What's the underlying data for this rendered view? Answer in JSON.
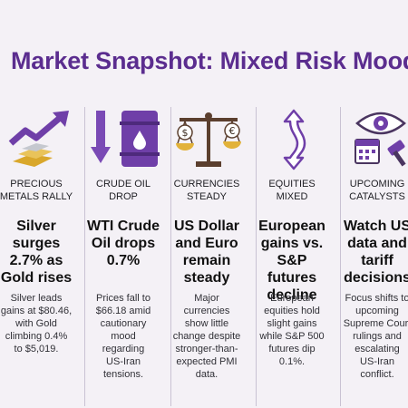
{
  "title": "Market Snapshot: Mixed Risk Mood",
  "columns": [
    {
      "icon": "rising-arrow-gold-bars-icon",
      "caption": "PRECIOUS\nMETALS RALLY",
      "headline": "Silver\nsurges\n2.7% as\nGold rises",
      "description": "Silver leads\ngains at $80.46,\nwith Gold\nclimbing 0.4%\nto $5,019."
    },
    {
      "icon": "oil-barrel-down-arrow-icon",
      "caption": "CRUDE OIL\nDROP",
      "headline": "WTI Crude\nOil drops\n0.7%",
      "description": "Prices fall to\n$66.18 amid\ncautionary\nmood\nregarding\nUS-Iran\ntensions."
    },
    {
      "icon": "currency-scale-icon",
      "caption": "CURRENCIES\nSTEADY",
      "headline": "US Dollar\nand Euro\nremain\nsteady",
      "description": "Major\ncurrencies\nshow little\nchange despite\nstronger-than-\nexpected PMI\ndata."
    },
    {
      "icon": "up-down-arrow-icon",
      "caption": "EQUITIES\nMIXED",
      "headline": "European\ngains vs.\nS&P\nfutures\ndecline",
      "description": "European\nequities hold\nslight gains\nwhile S&P 500\nfutures dip\n0.1%."
    },
    {
      "icon": "eye-calendar-gavel-icon",
      "caption": "UPCOMING\nCATALYSTS",
      "headline": "Watch US\ndata and\ntariff\ndecisions",
      "description": "Focus shifts to\nupcoming\nSupreme Court\nrulings and\nescalating\nUS-Iran\nconflict."
    }
  ],
  "colors": {
    "title": "#5b2d8f",
    "accent_purple": "#6f3fa8",
    "gold": "#e2b23a",
    "silver": "#b9bcc4",
    "background": "#f4f1f6"
  }
}
